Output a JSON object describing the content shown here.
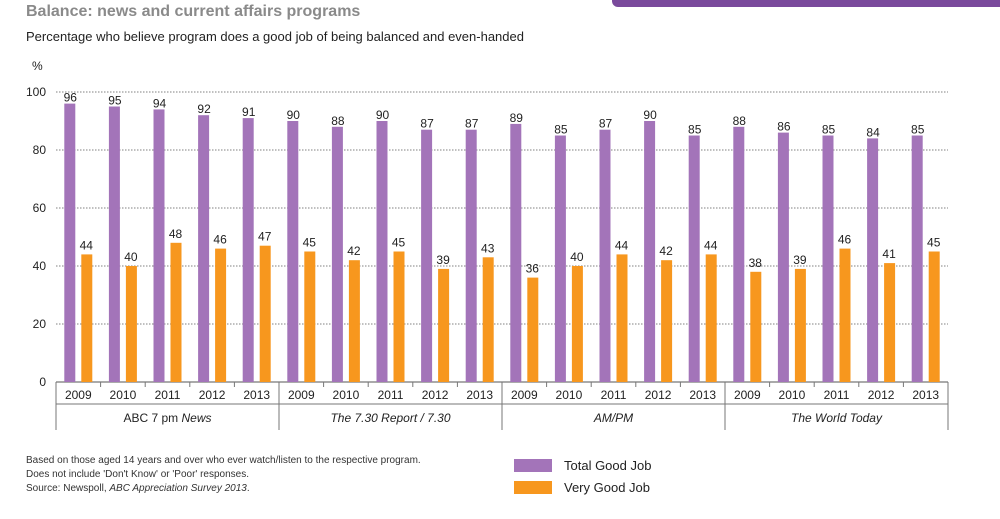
{
  "header": {
    "title": "Balance: news and current affairs programs",
    "subtitle": "Percentage who believe program does a good job of being balanced and even-handed"
  },
  "colors": {
    "accent": "#7a4a9c",
    "total": "#a374b9",
    "very": "#f7971e",
    "grid": "#808080"
  },
  "chart_data": {
    "type": "bar",
    "title": "Balance: news and current affairs programs",
    "subtitle": "Percentage who believe program does a good job of being balanced and even-handed",
    "ylabel": "%",
    "xlabel": "",
    "ylim": [
      0,
      100
    ],
    "yticks": [
      0,
      20,
      40,
      60,
      80,
      100
    ],
    "grid": true,
    "legend_position": "bottom-center",
    "groups": [
      {
        "name": "ABC 7 pm News",
        "prefix": "ABC 7 pm ",
        "italic": "News",
        "years": [
          "2009",
          "2010",
          "2011",
          "2012",
          "2013"
        ]
      },
      {
        "name": "The 7.30 Report / 7.30",
        "prefix": "",
        "italic": "The 7.30 Report / 7.30",
        "years": [
          "2009",
          "2010",
          "2011",
          "2012",
          "2013"
        ]
      },
      {
        "name": "AM/PM",
        "prefix": "",
        "italic": "AM/PM",
        "years": [
          "2009",
          "2010",
          "2011",
          "2012",
          "2013"
        ]
      },
      {
        "name": "The World Today",
        "prefix": "",
        "italic": "The World Today",
        "years": [
          "2009",
          "2010",
          "2011",
          "2012",
          "2013"
        ]
      }
    ],
    "series": [
      {
        "name": "Total Good Job",
        "color": "#a374b9",
        "values": [
          96,
          95,
          94,
          92,
          91,
          90,
          88,
          90,
          87,
          87,
          89,
          85,
          87,
          90,
          85,
          88,
          86,
          85,
          84,
          85
        ]
      },
      {
        "name": "Very Good Job",
        "color": "#f7971e",
        "values": [
          44,
          40,
          48,
          46,
          47,
          45,
          42,
          45,
          39,
          43,
          36,
          40,
          44,
          42,
          44,
          38,
          39,
          46,
          41,
          45
        ]
      }
    ]
  },
  "legend": [
    {
      "label": "Total Good Job",
      "color": "#a374b9"
    },
    {
      "label": "Very Good Job",
      "color": "#f7971e"
    }
  ],
  "notes": {
    "line1": "Based on those aged 14 years and over who ever watch/listen to the respective program. Does not include 'Don't Know' or 'Poor' responses.",
    "source_prefix": "Source: Newspoll, ",
    "source_italic": "ABC Appreciation Survey 2013",
    "source_suffix": "."
  }
}
